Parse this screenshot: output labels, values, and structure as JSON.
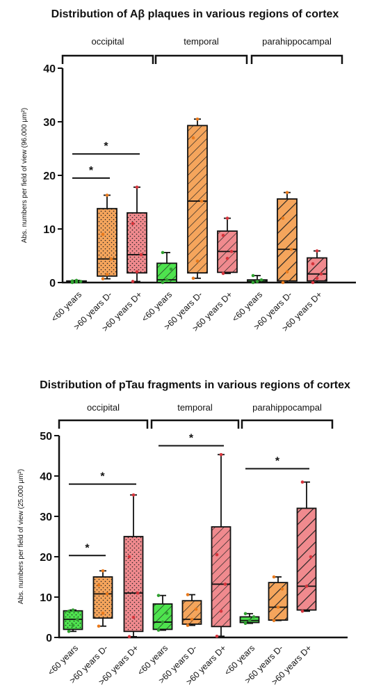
{
  "colors": {
    "young": "#4ee34e",
    "old_dminus": "#f5a55c",
    "old_dplus": "#f08a8e",
    "point_young": "#2f9f2f",
    "point_dminus": "#e8791c",
    "point_dplus": "#d6343c"
  },
  "chart_data": [
    {
      "type": "boxplot",
      "title": "Distribution of Aβ plaques in various regions of cortex",
      "ylabel": "Abs. numbers per field of view (96.000 μm²)",
      "ylim": [
        0,
        40
      ],
      "yticks": [
        "0",
        "10",
        "20",
        "30",
        "40"
      ],
      "regions": [
        "occipital",
        "temporal",
        "parahippocampal"
      ],
      "categories": [
        "<60 years",
        ">60 years D-",
        ">60 years D+"
      ],
      "boxes": [
        {
          "region": "occipital",
          "group": "<60 years",
          "pattern": "dots",
          "min": 0.0,
          "q1": 0.0,
          "median": 0.1,
          "q3": 0.3,
          "max": 0.4,
          "points": [
            0.0,
            0.1,
            0.2,
            0.3,
            0.4
          ]
        },
        {
          "region": "occipital",
          "group": ">60 years D-",
          "pattern": "dots",
          "min": 0.7,
          "q1": 1.2,
          "median": 4.4,
          "q3": 13.8,
          "max": 16.3,
          "points": [
            0.7,
            1.5,
            4.4,
            9.0,
            16.3
          ]
        },
        {
          "region": "occipital",
          "group": ">60 years D+",
          "pattern": "dots",
          "min": 0.2,
          "q1": 1.8,
          "median": 5.2,
          "q3": 13.0,
          "max": 17.8,
          "points": [
            0.2,
            2.0,
            5.2,
            11.0,
            17.8
          ]
        },
        {
          "region": "temporal",
          "group": "<60 years",
          "pattern": "wide-hatch",
          "min": 0.0,
          "q1": 0.0,
          "median": 0.5,
          "q3": 3.6,
          "max": 5.6,
          "points": [
            0.0,
            0.5,
            2.5,
            5.6
          ]
        },
        {
          "region": "temporal",
          "group": ">60 years D-",
          "pattern": "wide-hatch",
          "min": 0.8,
          "q1": 1.8,
          "median": 15.2,
          "q3": 29.3,
          "max": 30.5,
          "points": [
            0.8,
            4.0,
            15.2,
            27.0,
            30.5
          ]
        },
        {
          "region": "temporal",
          "group": ">60 years D+",
          "pattern": "wide-hatch",
          "min": 1.7,
          "q1": 1.9,
          "median": 5.8,
          "q3": 9.6,
          "max": 12.0,
          "points": [
            1.7,
            4.5,
            5.8,
            8.8,
            12.0
          ]
        },
        {
          "region": "parahippocampal",
          "group": "<60 years",
          "pattern": "dense-hatch",
          "min": 0.0,
          "q1": 0.0,
          "median": 0.2,
          "q3": 0.5,
          "max": 1.3,
          "points": [
            0.0,
            0.2,
            0.5,
            1.3
          ]
        },
        {
          "region": "parahippocampal",
          "group": ">60 years D-",
          "pattern": "dense-hatch",
          "min": 0.0,
          "q1": 0.3,
          "median": 6.2,
          "q3": 15.6,
          "max": 16.8,
          "points": [
            0.0,
            2.0,
            6.2,
            12.0,
            16.8
          ]
        },
        {
          "region": "parahippocampal",
          "group": ">60 years D+",
          "pattern": "dense-hatch",
          "min": 0.0,
          "q1": 0.3,
          "median": 1.6,
          "q3": 4.6,
          "max": 5.9,
          "points": [
            0.0,
            0.8,
            1.6,
            3.5,
            5.9
          ]
        }
      ],
      "significance": [
        {
          "label": "*",
          "region": "occipital",
          "from": "<60 years",
          "to": ">60 years D-",
          "y": 19.5
        },
        {
          "label": "*",
          "region": "occipital",
          "from": "<60 years",
          "to": ">60 years D+",
          "y": 24.0
        }
      ]
    },
    {
      "type": "boxplot",
      "title": "Distribution of pTau fragments in various regions of cortex",
      "ylabel": "Abs. numbers per field of view (25.000 μm²)",
      "ylim": [
        0,
        50
      ],
      "yticks": [
        "0",
        "10",
        "20",
        "30",
        "40",
        "50"
      ],
      "regions": [
        "occipital",
        "temporal",
        "parahippocampal"
      ],
      "categories": [
        "<60 years",
        ">60 years D-",
        ">60 years D+"
      ],
      "boxes": [
        {
          "region": "occipital",
          "group": "<60 years",
          "pattern": "dots",
          "min": 1.5,
          "q1": 2.0,
          "median": 4.5,
          "q3": 6.6,
          "max": 6.8,
          "points": [
            1.5,
            3.0,
            4.5,
            6.5,
            6.8
          ]
        },
        {
          "region": "occipital",
          "group": ">60 years D-",
          "pattern": "dots",
          "min": 2.8,
          "q1": 4.8,
          "median": 10.8,
          "q3": 15.0,
          "max": 16.5,
          "points": [
            2.8,
            6.0,
            10.8,
            13.0,
            16.5
          ]
        },
        {
          "region": "occipital",
          "group": ">60 years D+",
          "pattern": "dots",
          "min": 0.2,
          "q1": 1.5,
          "median": 11.0,
          "q3": 25.0,
          "max": 35.3,
          "points": [
            0.2,
            5.0,
            11.0,
            20.0,
            35.3
          ]
        },
        {
          "region": "temporal",
          "group": "<60 years",
          "pattern": "wide-hatch",
          "min": 1.8,
          "q1": 2.0,
          "median": 3.8,
          "q3": 8.3,
          "max": 10.4,
          "points": [
            1.8,
            3.8,
            6.0,
            10.4
          ]
        },
        {
          "region": "temporal",
          "group": ">60 years D-",
          "pattern": "wide-hatch",
          "min": 3.0,
          "q1": 3.3,
          "median": 4.5,
          "q3": 9.1,
          "max": 10.6,
          "points": [
            3.0,
            4.5,
            7.0,
            10.6
          ]
        },
        {
          "region": "temporal",
          "group": ">60 years D+",
          "pattern": "wide-hatch",
          "min": 0.3,
          "q1": 2.7,
          "median": 13.2,
          "q3": 27.4,
          "max": 45.3,
          "points": [
            0.3,
            6.5,
            13.2,
            20.5,
            45.3
          ]
        },
        {
          "region": "parahippocampal",
          "group": "<60 years",
          "pattern": "dense-hatch",
          "min": 3.5,
          "q1": 3.7,
          "median": 4.2,
          "q3": 5.1,
          "max": 5.9,
          "points": [
            3.5,
            4.2,
            5.1,
            5.9
          ]
        },
        {
          "region": "parahippocampal",
          "group": ">60 years D-",
          "pattern": "dense-hatch",
          "min": 4.2,
          "q1": 4.3,
          "median": 7.5,
          "q3": 13.6,
          "max": 15.0,
          "points": [
            4.2,
            7.5,
            12.0,
            15.0
          ]
        },
        {
          "region": "parahippocampal",
          "group": ">60 years D+",
          "pattern": "dense-hatch",
          "min": 6.5,
          "q1": 6.8,
          "median": 12.7,
          "q3": 32.0,
          "max": 38.5,
          "points": [
            6.5,
            12.7,
            20.0,
            38.5
          ]
        }
      ],
      "significance": [
        {
          "label": "*",
          "region": "occipital",
          "from": "<60 years",
          "to": ">60 years D-",
          "y": 20.3
        },
        {
          "label": "*",
          "region": "occipital",
          "from": "<60 years",
          "to": ">60 years D+",
          "y": 38.0
        },
        {
          "label": "*",
          "region": "temporal",
          "from": "<60 years",
          "to": ">60 years D+",
          "y": 47.5
        },
        {
          "label": "*",
          "region": "parahippocampal",
          "from": "<60 years",
          "to": ">60 years D+",
          "y": 41.8
        }
      ]
    }
  ]
}
